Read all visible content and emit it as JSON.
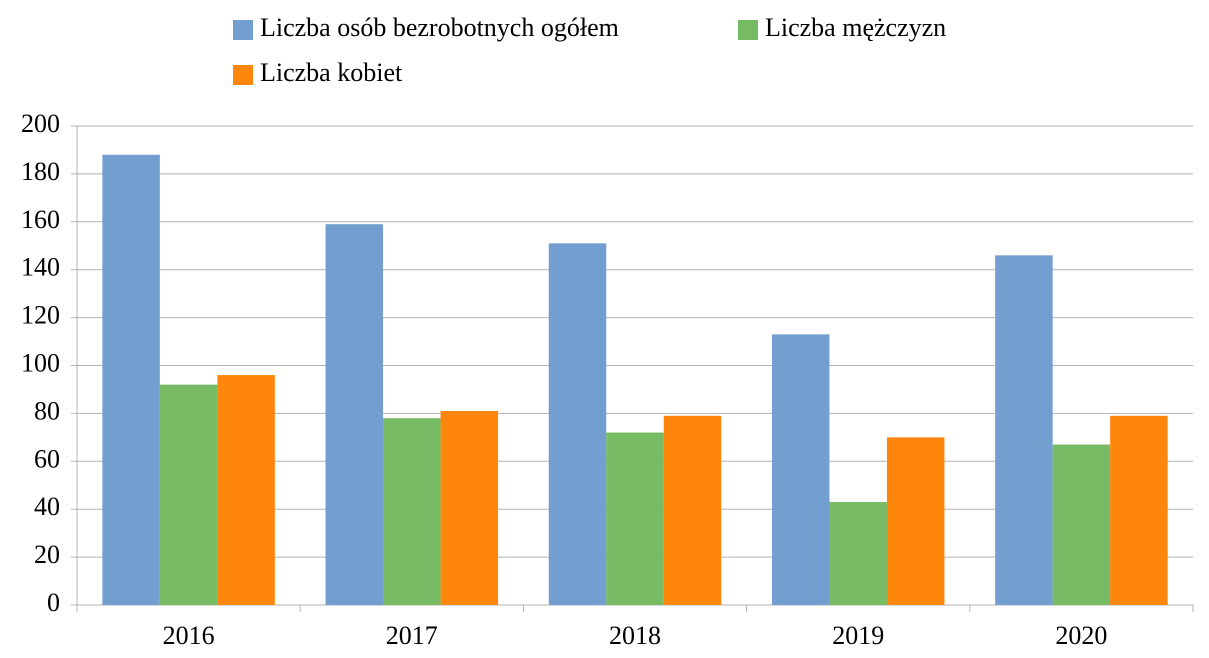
{
  "chart_data": {
    "type": "bar",
    "categories": [
      "2016",
      "2017",
      "2018",
      "2019",
      "2020"
    ],
    "series": [
      {
        "name": "Liczba osób bezrobotnych ogółem",
        "color": "#729fcf",
        "values": [
          188,
          159,
          151,
          113,
          146
        ]
      },
      {
        "name": "Liczba mężczyzn",
        "color": "#77bc65",
        "values": [
          92,
          78,
          72,
          43,
          67
        ]
      },
      {
        "name": "Liczba kobiet",
        "color": "#ff860d",
        "values": [
          96,
          81,
          79,
          70,
          79
        ]
      }
    ],
    "ylim": [
      0,
      200
    ],
    "yticks": [
      0,
      20,
      40,
      60,
      80,
      100,
      120,
      140,
      160,
      180,
      200
    ],
    "grid": true,
    "legend": "top"
  }
}
